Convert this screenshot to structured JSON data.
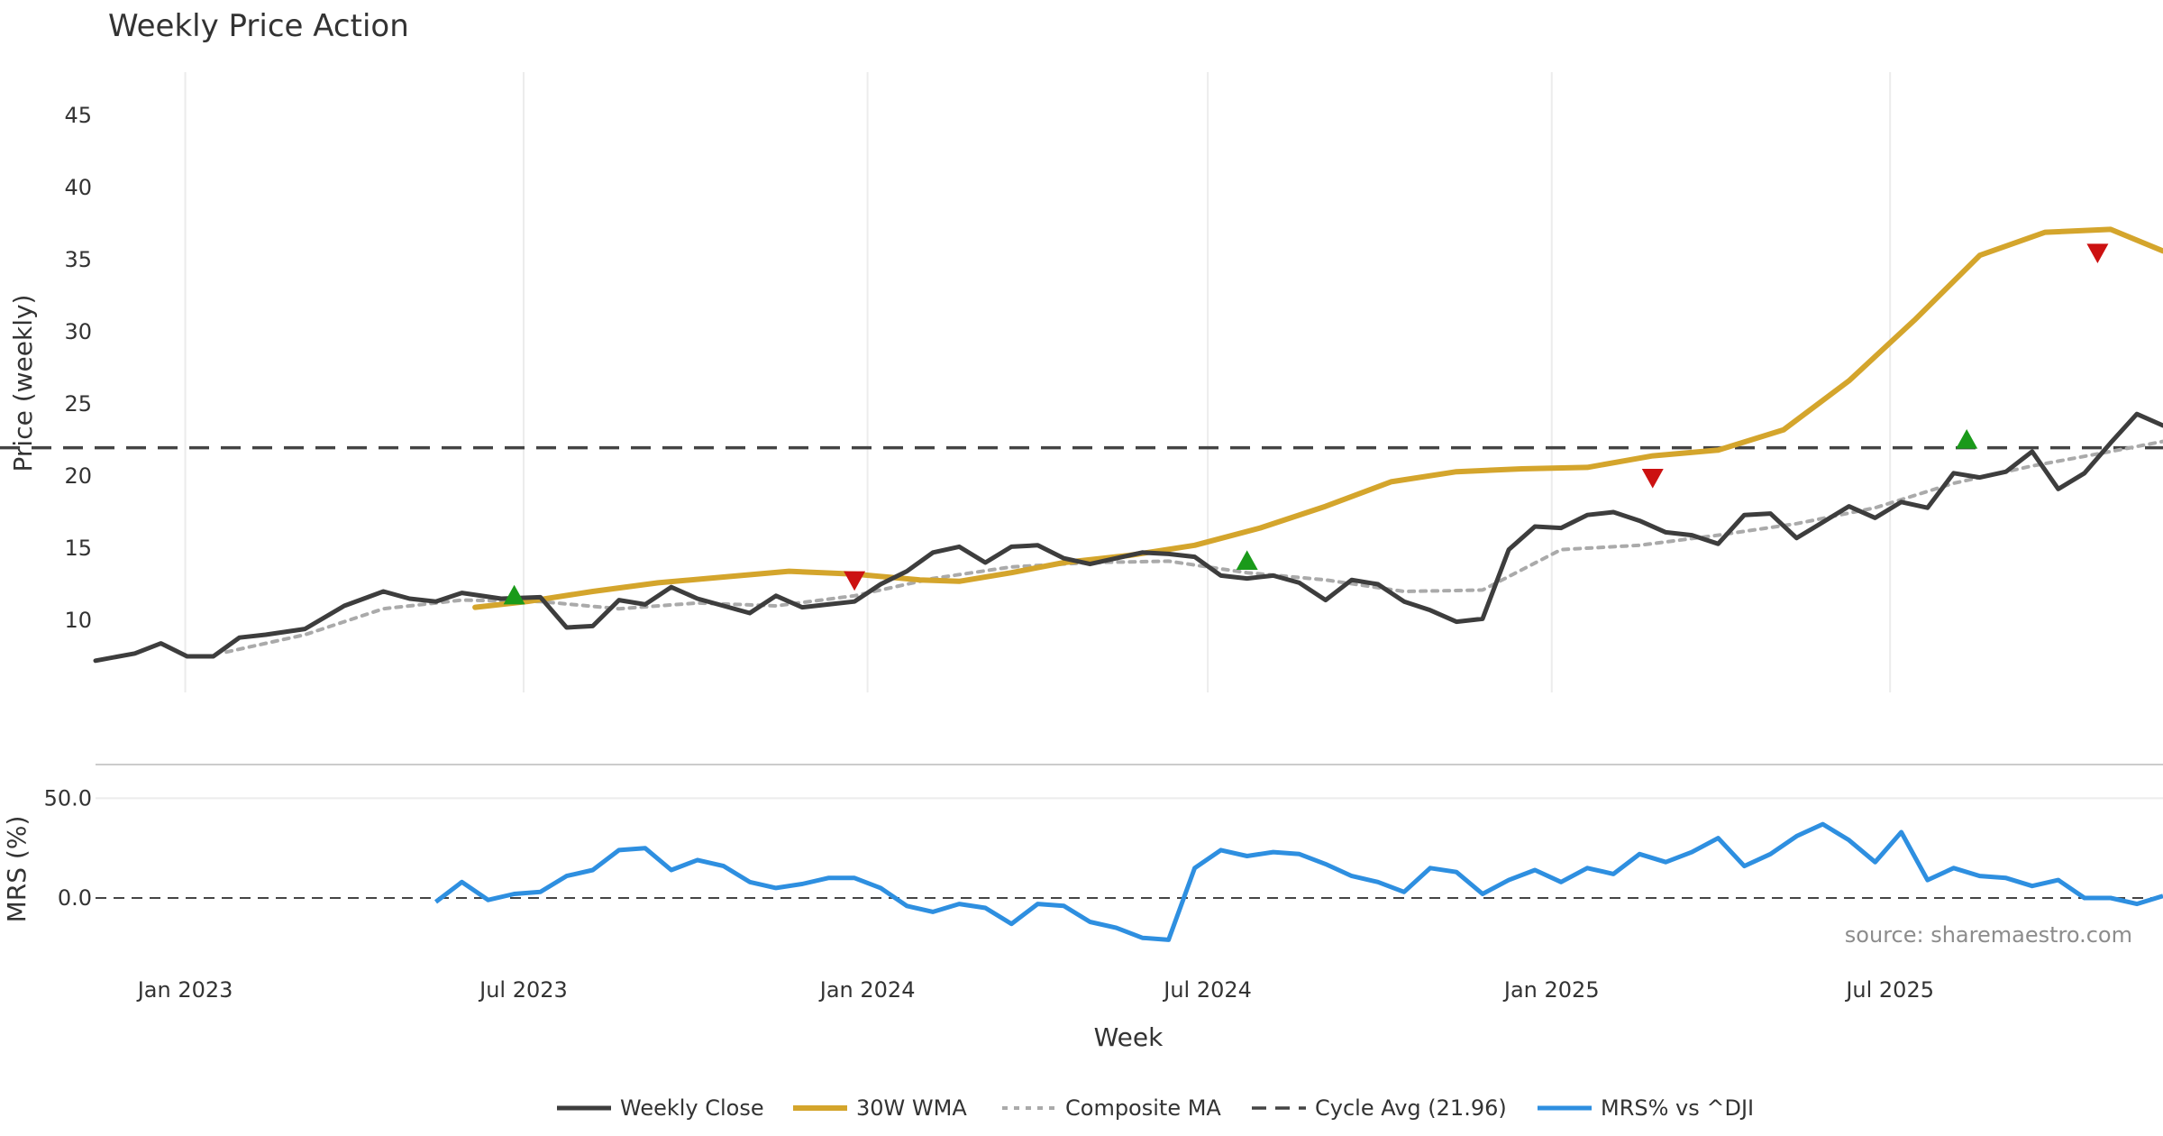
{
  "chart_data": {
    "type": "line",
    "title": "Weekly Price Action",
    "xlabel": "Week",
    "source_note": "source: sharemaestro.com",
    "x_ticks": [
      "Jan 2023",
      "Jul 2023",
      "Jan 2024",
      "Jul 2024",
      "Jan 2025",
      "Jul 2025"
    ],
    "x_range": [
      "2022-11-14",
      "2025-11-24"
    ],
    "price_panel": {
      "ylabel": "Price (weekly)",
      "ylim": [
        5,
        48
      ],
      "y_ticks": [
        10,
        15,
        20,
        25,
        30,
        35,
        40,
        45
      ],
      "grid": "vertical"
    },
    "mrs_panel": {
      "ylabel": "MRS (%)",
      "ylim": [
        -38,
        66
      ],
      "y_ticks": [
        "0.0",
        "50.0"
      ],
      "grid": "horizontal"
    },
    "legend_position": "bottom-center",
    "colors": {
      "close": "#3d3d3d",
      "wma": "#d4a52c",
      "composite": "#aaaaaa",
      "cycle": "#444444",
      "mrs": "#2e8fe0",
      "buy": "#1a9a1a",
      "sell": "#cc1111",
      "grid": "#ececec"
    },
    "series": [
      {
        "key": "close",
        "name": "Weekly Close",
        "points": [
          [
            "2022-11-14",
            7.2
          ],
          [
            "2022-12-05",
            7.7
          ],
          [
            "2022-12-19",
            8.4
          ],
          [
            "2023-01-02",
            7.5
          ],
          [
            "2023-01-16",
            7.5
          ],
          [
            "2023-01-30",
            8.8
          ],
          [
            "2023-02-13",
            9.0
          ],
          [
            "2023-03-06",
            9.4
          ],
          [
            "2023-03-27",
            11.0
          ],
          [
            "2023-04-17",
            12.0
          ],
          [
            "2023-05-01",
            11.5
          ],
          [
            "2023-05-15",
            11.3
          ],
          [
            "2023-05-29",
            11.9
          ],
          [
            "2023-06-19",
            11.5
          ],
          [
            "2023-07-10",
            11.6
          ],
          [
            "2023-07-24",
            9.5
          ],
          [
            "2023-08-07",
            9.6
          ],
          [
            "2023-08-21",
            11.4
          ],
          [
            "2023-09-04",
            11.1
          ],
          [
            "2023-09-18",
            12.3
          ],
          [
            "2023-10-02",
            11.5
          ],
          [
            "2023-10-16",
            11.0
          ],
          [
            "2023-10-30",
            10.5
          ],
          [
            "2023-11-13",
            11.7
          ],
          [
            "2023-11-27",
            10.9
          ],
          [
            "2023-12-11",
            11.1
          ],
          [
            "2023-12-25",
            11.3
          ],
          [
            "2024-01-08",
            12.5
          ],
          [
            "2024-01-22",
            13.4
          ],
          [
            "2024-02-05",
            14.7
          ],
          [
            "2024-02-19",
            15.1
          ],
          [
            "2024-03-04",
            14.0
          ],
          [
            "2024-03-18",
            15.1
          ],
          [
            "2024-04-01",
            15.2
          ],
          [
            "2024-04-15",
            14.3
          ],
          [
            "2024-04-29",
            13.9
          ],
          [
            "2024-05-13",
            14.3
          ],
          [
            "2024-05-27",
            14.7
          ],
          [
            "2024-06-10",
            14.6
          ],
          [
            "2024-06-24",
            14.4
          ],
          [
            "2024-07-08",
            13.1
          ],
          [
            "2024-07-22",
            12.9
          ],
          [
            "2024-08-05",
            13.1
          ],
          [
            "2024-08-19",
            12.6
          ],
          [
            "2024-09-02",
            11.4
          ],
          [
            "2024-09-16",
            12.8
          ],
          [
            "2024-09-30",
            12.5
          ],
          [
            "2024-10-14",
            11.3
          ],
          [
            "2024-10-28",
            10.7
          ],
          [
            "2024-11-11",
            9.9
          ],
          [
            "2024-11-25",
            10.1
          ],
          [
            "2024-12-09",
            14.9
          ],
          [
            "2024-12-23",
            16.5
          ],
          [
            "2025-01-06",
            16.4
          ],
          [
            "2025-01-20",
            17.3
          ],
          [
            "2025-02-03",
            17.5
          ],
          [
            "2025-02-17",
            16.9
          ],
          [
            "2025-03-03",
            16.1
          ],
          [
            "2025-03-17",
            15.9
          ],
          [
            "2025-03-31",
            15.3
          ],
          [
            "2025-04-14",
            17.3
          ],
          [
            "2025-04-28",
            17.4
          ],
          [
            "2025-05-12",
            15.7
          ],
          [
            "2025-05-26",
            16.8
          ],
          [
            "2025-06-09",
            17.9
          ],
          [
            "2025-06-23",
            17.1
          ],
          [
            "2025-07-07",
            18.2
          ],
          [
            "2025-07-21",
            17.8
          ],
          [
            "2025-08-04",
            20.2
          ],
          [
            "2025-08-18",
            19.9
          ],
          [
            "2025-09-01",
            20.3
          ],
          [
            "2025-09-15",
            21.7
          ],
          [
            "2025-09-29",
            19.1
          ],
          [
            "2025-10-13",
            20.2
          ],
          [
            "2025-10-27",
            22.3
          ],
          [
            "2025-11-10",
            24.3
          ],
          [
            "2025-11-24",
            23.5
          ]
        ]
      },
      {
        "key": "wma",
        "name": "30W WMA",
        "points": [
          [
            "2023-06-05",
            10.9
          ],
          [
            "2023-07-03",
            11.3
          ],
          [
            "2023-08-07",
            12.0
          ],
          [
            "2023-09-11",
            12.6
          ],
          [
            "2023-10-16",
            13.0
          ],
          [
            "2023-11-20",
            13.4
          ],
          [
            "2023-12-25",
            13.2
          ],
          [
            "2024-01-29",
            12.8
          ],
          [
            "2024-02-19",
            12.7
          ],
          [
            "2024-03-18",
            13.3
          ],
          [
            "2024-04-15",
            14.0
          ],
          [
            "2024-05-20",
            14.5
          ],
          [
            "2024-06-24",
            15.2
          ],
          [
            "2024-07-29",
            16.4
          ],
          [
            "2024-09-02",
            17.9
          ],
          [
            "2024-10-07",
            19.6
          ],
          [
            "2024-11-11",
            20.3
          ],
          [
            "2024-12-16",
            20.5
          ],
          [
            "2025-01-20",
            20.6
          ],
          [
            "2025-02-24",
            21.4
          ],
          [
            "2025-03-31",
            21.8
          ],
          [
            "2025-05-05",
            23.2
          ],
          [
            "2025-06-09",
            26.6
          ],
          [
            "2025-07-14",
            30.8
          ],
          [
            "2025-08-18",
            35.3
          ],
          [
            "2025-09-22",
            36.9
          ],
          [
            "2025-10-27",
            37.1
          ],
          [
            "2025-11-24",
            35.6
          ]
        ]
      },
      {
        "key": "composite",
        "name": "Composite MA",
        "points": [
          [
            "2023-01-23",
            7.8
          ],
          [
            "2023-03-06",
            9.0
          ],
          [
            "2023-04-17",
            10.8
          ],
          [
            "2023-05-29",
            11.4
          ],
          [
            "2023-07-10",
            11.3
          ],
          [
            "2023-08-21",
            10.8
          ],
          [
            "2023-10-02",
            11.2
          ],
          [
            "2023-11-13",
            11.0
          ],
          [
            "2023-12-25",
            11.7
          ],
          [
            "2024-02-05",
            12.9
          ],
          [
            "2024-03-18",
            13.7
          ],
          [
            "2024-04-29",
            14.0
          ],
          [
            "2024-06-10",
            14.1
          ],
          [
            "2024-07-22",
            13.3
          ],
          [
            "2024-09-02",
            12.8
          ],
          [
            "2024-10-14",
            12.0
          ],
          [
            "2024-11-25",
            12.1
          ],
          [
            "2025-01-06",
            14.9
          ],
          [
            "2025-02-17",
            15.2
          ],
          [
            "2025-03-31",
            15.9
          ],
          [
            "2025-05-12",
            16.7
          ],
          [
            "2025-06-23",
            17.8
          ],
          [
            "2025-08-04",
            19.5
          ],
          [
            "2025-09-15",
            20.7
          ],
          [
            "2025-10-27",
            21.7
          ],
          [
            "2025-11-24",
            22.4
          ]
        ]
      },
      {
        "key": "mrs",
        "name": "MRS% vs ^DJI",
        "points": [
          [
            "2023-05-15",
            -2
          ],
          [
            "2023-05-29",
            8
          ],
          [
            "2023-06-12",
            -1
          ],
          [
            "2023-06-26",
            2
          ],
          [
            "2023-07-10",
            3
          ],
          [
            "2023-07-24",
            11
          ],
          [
            "2023-08-07",
            14
          ],
          [
            "2023-08-21",
            24
          ],
          [
            "2023-09-04",
            25
          ],
          [
            "2023-09-18",
            14
          ],
          [
            "2023-10-02",
            19
          ],
          [
            "2023-10-16",
            16
          ],
          [
            "2023-10-30",
            8
          ],
          [
            "2023-11-13",
            5
          ],
          [
            "2023-11-27",
            7
          ],
          [
            "2023-12-11",
            10
          ],
          [
            "2023-12-25",
            10
          ],
          [
            "2024-01-08",
            5
          ],
          [
            "2024-01-22",
            -4
          ],
          [
            "2024-02-05",
            -7
          ],
          [
            "2024-02-19",
            -3
          ],
          [
            "2024-03-04",
            -5
          ],
          [
            "2024-03-18",
            -13
          ],
          [
            "2024-04-01",
            -3
          ],
          [
            "2024-04-15",
            -4
          ],
          [
            "2024-04-29",
            -12
          ],
          [
            "2024-05-13",
            -15
          ],
          [
            "2024-05-27",
            -20
          ],
          [
            "2024-06-10",
            -21
          ],
          [
            "2024-06-24",
            15
          ],
          [
            "2024-07-08",
            24
          ],
          [
            "2024-07-22",
            21
          ],
          [
            "2024-08-05",
            23
          ],
          [
            "2024-08-19",
            22
          ],
          [
            "2024-09-02",
            17
          ],
          [
            "2024-09-16",
            11
          ],
          [
            "2024-09-30",
            8
          ],
          [
            "2024-10-14",
            3
          ],
          [
            "2024-10-28",
            15
          ],
          [
            "2024-11-11",
            13
          ],
          [
            "2024-11-25",
            2
          ],
          [
            "2024-12-09",
            9
          ],
          [
            "2024-12-23",
            14
          ],
          [
            "2025-01-06",
            8
          ],
          [
            "2025-01-20",
            15
          ],
          [
            "2025-02-03",
            12
          ],
          [
            "2025-02-17",
            22
          ],
          [
            "2025-03-03",
            18
          ],
          [
            "2025-03-17",
            23
          ],
          [
            "2025-03-31",
            30
          ],
          [
            "2025-04-14",
            16
          ],
          [
            "2025-04-28",
            22
          ],
          [
            "2025-05-12",
            31
          ],
          [
            "2025-05-26",
            37
          ],
          [
            "2025-06-09",
            29
          ],
          [
            "2025-06-23",
            18
          ],
          [
            "2025-07-07",
            33
          ],
          [
            "2025-07-21",
            9
          ],
          [
            "2025-08-04",
            15
          ],
          [
            "2025-08-18",
            11
          ],
          [
            "2025-09-01",
            10
          ],
          [
            "2025-09-15",
            6
          ],
          [
            "2025-09-29",
            9
          ],
          [
            "2025-10-13",
            0
          ],
          [
            "2025-10-27",
            0
          ],
          [
            "2025-11-10",
            -3
          ],
          [
            "2025-11-24",
            1
          ]
        ]
      }
    ],
    "cycle_avg": {
      "name": "Cycle Avg (21.96)",
      "value": 21.96
    },
    "signals": [
      {
        "type": "buy",
        "date": "2023-06-26",
        "value": 11.7
      },
      {
        "type": "sell",
        "date": "2023-12-25",
        "value": 12.8
      },
      {
        "type": "buy",
        "date": "2024-07-22",
        "value": 14.1
      },
      {
        "type": "sell",
        "date": "2025-02-24",
        "value": 19.9
      },
      {
        "type": "buy",
        "date": "2025-08-11",
        "value": 22.5
      },
      {
        "type": "sell",
        "date": "2025-10-20",
        "value": 35.5
      }
    ]
  }
}
